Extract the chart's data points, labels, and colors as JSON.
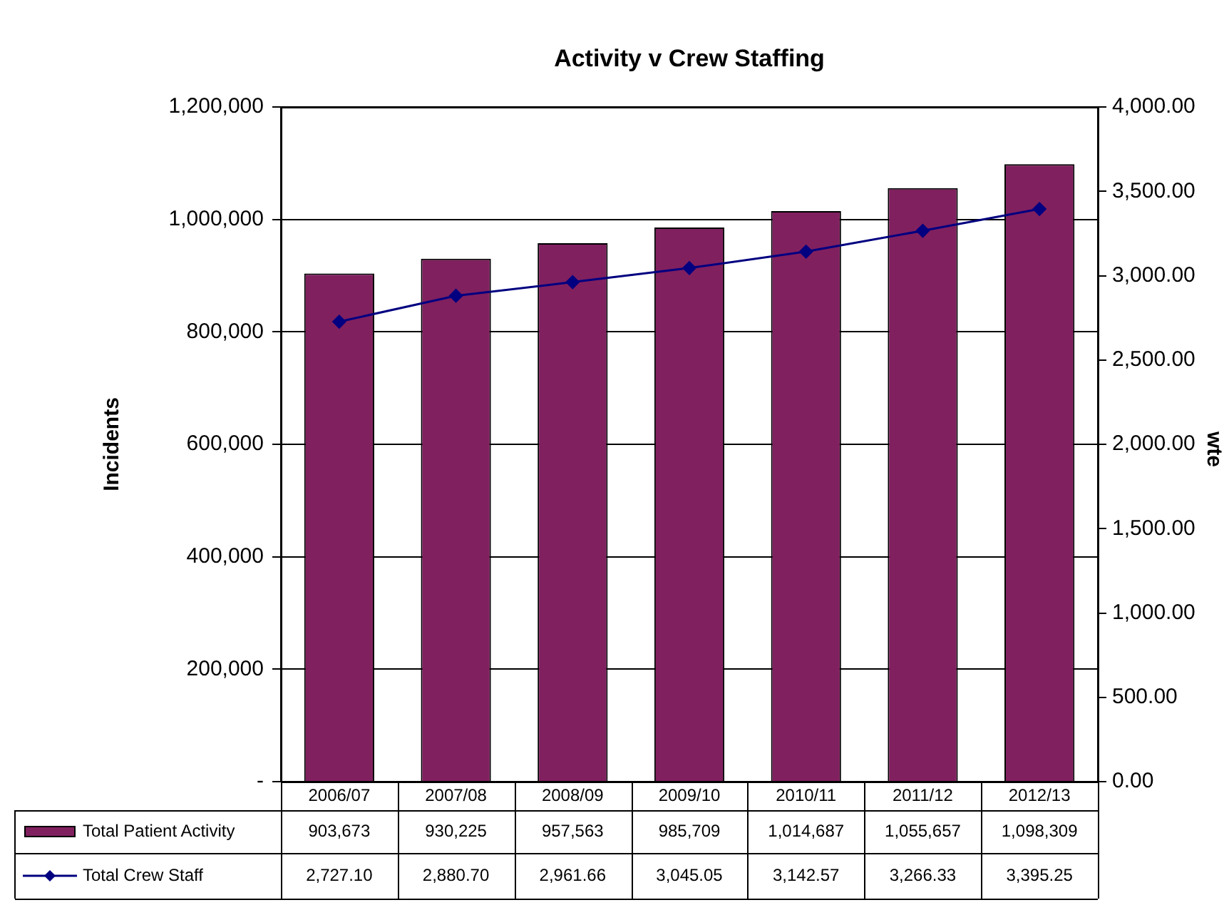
{
  "chart_data": {
    "type": "bar",
    "title": "Activity v Crew Staffing",
    "ylabel": "Incidents",
    "y2label": "wte",
    "categories": [
      "2006/07",
      "2007/08",
      "2008/09",
      "2009/10",
      "2010/11",
      "2011/12",
      "2012/13"
    ],
    "series": [
      {
        "name": "Total Patient Activity",
        "color": "#80205f",
        "values": [
          903673,
          930225,
          957563,
          985709,
          1014687,
          1055657,
          1098309
        ],
        "value_labels": [
          "903,673",
          "930,225",
          "957,563",
          "985,709",
          "1,014,687",
          "1,055,657",
          "1,098,309"
        ]
      },
      {
        "name": "Total Crew Staff",
        "type": "line",
        "axis": "y2",
        "color": "#000080",
        "marker": "diamond",
        "values": [
          2727.1,
          2880.7,
          2961.66,
          3045.05,
          3142.57,
          3266.33,
          3395.25
        ],
        "value_labels": [
          "2,727.10",
          "2,880.70",
          "2,961.66",
          "3,045.05",
          "3,142.57",
          "3,266.33",
          "3,395.25"
        ]
      }
    ],
    "ylim": [
      0,
      1200000
    ],
    "yticks": [
      {
        "value": 0,
        "label": "-"
      },
      {
        "value": 200000,
        "label": "200,000"
      },
      {
        "value": 400000,
        "label": "400,000"
      },
      {
        "value": 600000,
        "label": "600,000"
      },
      {
        "value": 800000,
        "label": "800,000"
      },
      {
        "value": 1000000,
        "label": "1,000,000"
      },
      {
        "value": 1200000,
        "label": "1,200,000"
      }
    ],
    "y2lim": [
      0,
      4000
    ],
    "y2ticks": [
      {
        "value": 0,
        "label": "0.00"
      },
      {
        "value": 500,
        "label": "500.00"
      },
      {
        "value": 1000,
        "label": "1,000.00"
      },
      {
        "value": 1500,
        "label": "1,500.00"
      },
      {
        "value": 2000,
        "label": "2,000.00"
      },
      {
        "value": 2500,
        "label": "2,500.00"
      },
      {
        "value": 3000,
        "label": "3,000.00"
      },
      {
        "value": 3500,
        "label": "3,500.00"
      },
      {
        "value": 4000,
        "label": "4,000.00"
      }
    ],
    "grid": "y",
    "legend": "bottom"
  }
}
